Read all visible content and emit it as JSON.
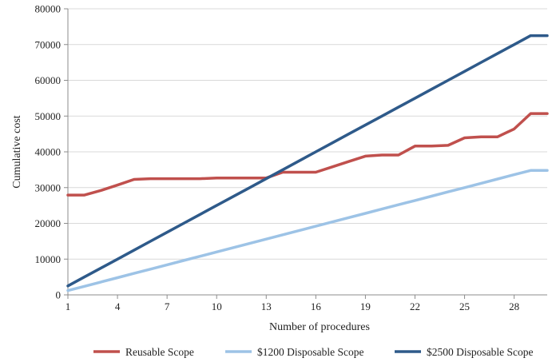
{
  "chart_data": {
    "type": "line",
    "title": "",
    "xlabel": "Number of procedures",
    "ylabel": "Cumulative cost",
    "xlim": [
      1,
      30
    ],
    "ylim": [
      0,
      80000
    ],
    "x_ticks": [
      "1",
      "4",
      "7",
      "10",
      "13",
      "16",
      "19",
      "22",
      "25",
      "28"
    ],
    "y_ticks": [
      "0",
      "10000",
      "20000",
      "30000",
      "40000",
      "50000",
      "60000",
      "70000",
      "80000"
    ],
    "grid": "horizontal",
    "legend_position": "bottom",
    "x": [
      1,
      2,
      3,
      4,
      5,
      6,
      7,
      8,
      9,
      10,
      11,
      12,
      13,
      14,
      15,
      16,
      17,
      18,
      19,
      20,
      21,
      22,
      23,
      24,
      25,
      26,
      27,
      28,
      29,
      30
    ],
    "series": [
      {
        "name": "Reusable Scope",
        "color": "#c0504d",
        "values": [
          27900,
          27900,
          29200,
          30700,
          32300,
          32500,
          32500,
          32500,
          32500,
          32700,
          32700,
          32700,
          32700,
          34300,
          34300,
          34300,
          35800,
          37300,
          38800,
          39100,
          39100,
          41600,
          41600,
          41800,
          43900,
          44200,
          44200,
          46400,
          50700,
          50700
        ]
      },
      {
        "name": "$1200 Disposable Scope",
        "color": "#9dc3e6",
        "values": [
          1200,
          2400,
          3600,
          4800,
          6000,
          7200,
          8400,
          9600,
          10800,
          12000,
          13200,
          14400,
          15600,
          16800,
          18000,
          19200,
          20400,
          21600,
          22800,
          24000,
          25200,
          26400,
          27600,
          28800,
          30000,
          31200,
          32400,
          33600,
          34800,
          34800
        ]
      },
      {
        "name": "$2500 Disposable Scope",
        "color": "#2e5a8a",
        "values": [
          2500,
          5000,
          7500,
          10000,
          12500,
          15000,
          17500,
          20000,
          22500,
          25000,
          27500,
          30000,
          32500,
          35000,
          37500,
          40000,
          42500,
          45000,
          47500,
          50000,
          52500,
          55000,
          57500,
          60000,
          62500,
          65000,
          67500,
          70000,
          72500,
          72500
        ]
      }
    ]
  }
}
